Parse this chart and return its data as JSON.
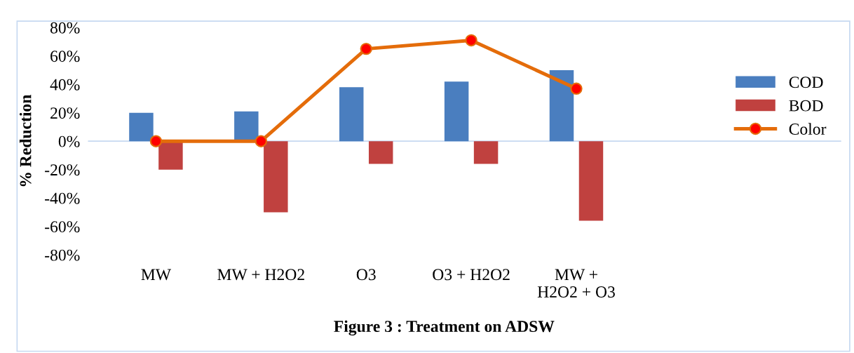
{
  "chart_data": {
    "type": "bar",
    "title": "Figure 3 : Treatment on ADSW",
    "ylabel": "% Reduction",
    "categories": [
      "MW",
      "MW + H2O2",
      "O3",
      "O3 + H2O2",
      "MW +\nH2O2 + O3"
    ],
    "series": [
      {
        "name": "COD",
        "color": "#4a7ebf",
        "values": [
          20,
          21,
          38,
          42,
          50
        ]
      },
      {
        "name": "BOD",
        "color": "#c0413f",
        "values": [
          -20,
          -50,
          -16,
          -16,
          -56
        ]
      },
      {
        "name": "Color",
        "type": "line",
        "color": "#e46c0a",
        "marker": "circle",
        "values": [
          0,
          0,
          65,
          71,
          37
        ]
      }
    ],
    "ylim": [
      -80,
      80
    ],
    "yticks": [
      {
        "value": -80,
        "label": "-80%"
      },
      {
        "value": -60,
        "label": "-60%"
      },
      {
        "value": -40,
        "label": "-40%"
      },
      {
        "value": -20,
        "label": "-20%"
      },
      {
        "value": 0,
        "label": "0%"
      },
      {
        "value": 20,
        "label": "20%"
      },
      {
        "value": 40,
        "label": "40%"
      },
      {
        "value": 60,
        "label": "60%"
      },
      {
        "value": 80,
        "label": "80%"
      }
    ],
    "ref_lines": [
      {
        "axis": "y",
        "value": 0,
        "color": "#c6d9f1"
      }
    ],
    "legend": "right",
    "grid": false
  }
}
